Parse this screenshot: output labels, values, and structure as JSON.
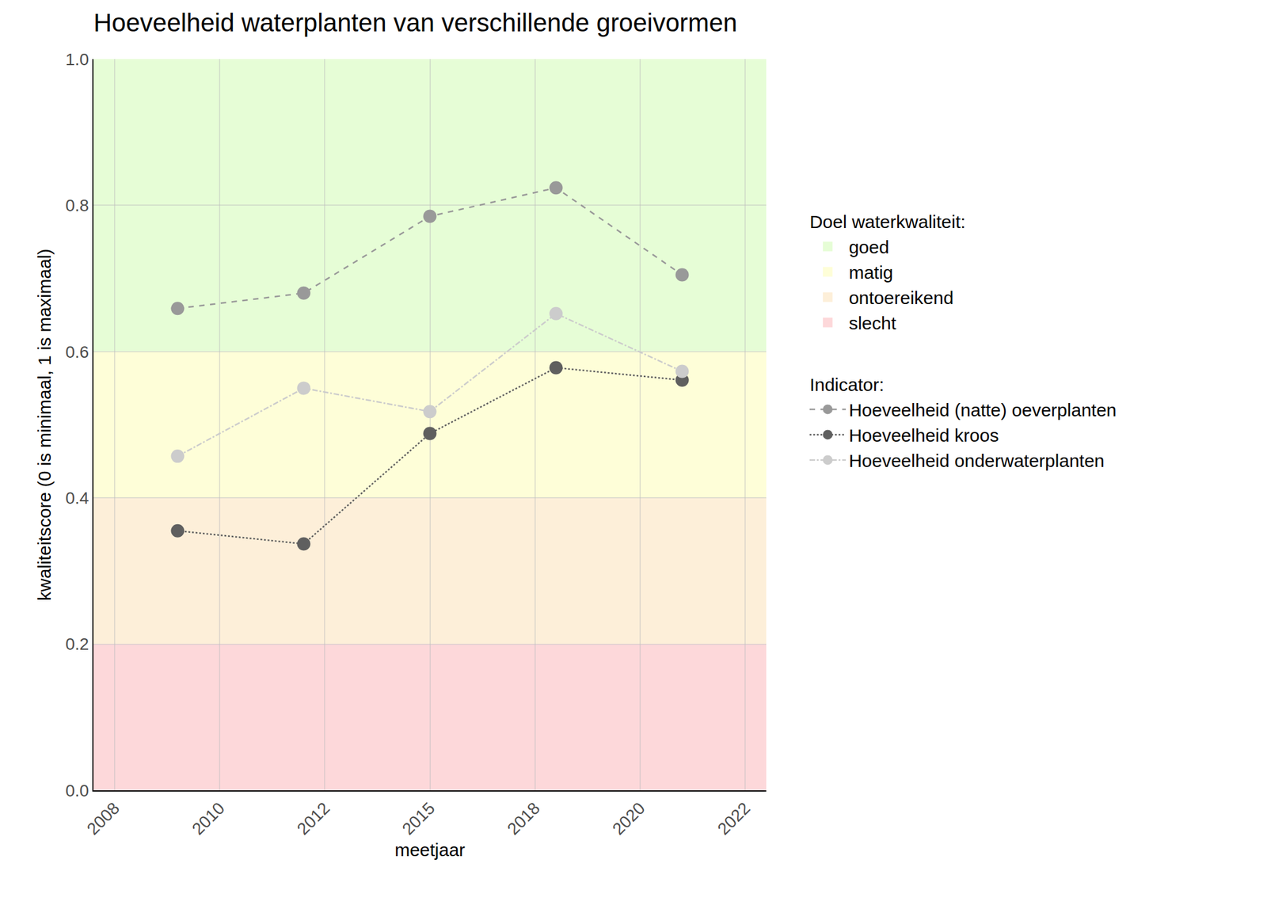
{
  "chart_data": {
    "type": "line",
    "title": "Hoeveelheid waterplanten van verschillende groeivormen",
    "x_label": "meetjaar",
    "y_label": "kwaliteitscore (0 is minimaal, 1 is maximaal)",
    "xlim": [
      2007,
      2023
    ],
    "xticks": [
      {
        "value": 2007.5,
        "label": "2008"
      },
      2010,
      {
        "value": 2012.5,
        "label": "2012"
      },
      2015,
      {
        "value": 2017.5,
        "label": "2018"
      },
      2020,
      {
        "value": 2022.5,
        "label": "2022"
      }
    ],
    "ylim": [
      0,
      1
    ],
    "yticks": [
      {
        "value": 0,
        "label": "0.0"
      },
      0.2,
      0.4,
      0.6,
      0.8,
      {
        "value": 1,
        "label": "1.0"
      }
    ],
    "grid": true,
    "legend": "right",
    "bands_legend_title": "Doel waterkwaliteit:",
    "bands": [
      {
        "name": "goed",
        "color": "#e6fdd6",
        "range": [
          0.6,
          1
        ]
      },
      {
        "name": "matig",
        "color": "#fefed8",
        "range": [
          0.4,
          0.6
        ]
      },
      {
        "name": "ontoereikend",
        "color": "#fdefd9",
        "range": [
          0.2,
          0.4
        ]
      },
      {
        "name": "slecht",
        "color": "#fdd8da",
        "range": [
          0,
          0.2
        ]
      }
    ],
    "series_legend_title": "Indicator:",
    "x": [
      2009,
      2012,
      2015,
      2018,
      2021
    ],
    "series": [
      {
        "name": "Hoeveelheid (natte) oeverplanten",
        "color": "#999999",
        "line_style": "dash",
        "marker": "circle",
        "values": [
          0.659,
          0.68,
          0.785,
          0.824,
          0.705
        ]
      },
      {
        "name": "Hoeveelheid kroos",
        "color": "#5f5f5f",
        "line_style": "dot",
        "marker": "circle",
        "values": [
          0.355,
          0.337,
          0.488,
          0.578,
          0.561
        ]
      },
      {
        "name": "Hoeveelheid onderwaterplanten",
        "color": "#cccccc",
        "line_style": "dashdot",
        "marker": "circle",
        "values": [
          0.457,
          0.55,
          0.518,
          0.652,
          0.573
        ]
      }
    ]
  }
}
